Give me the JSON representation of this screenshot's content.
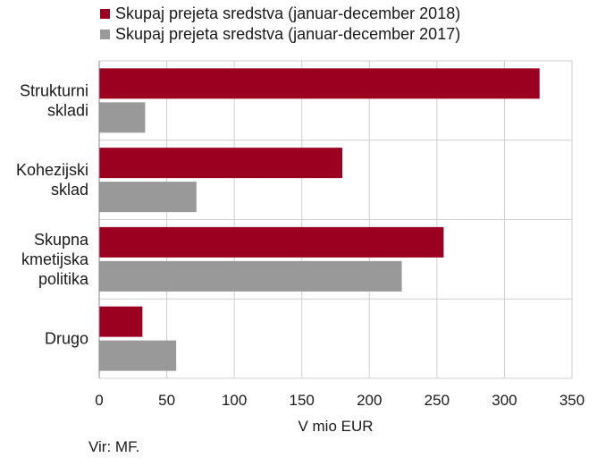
{
  "chart_data": {
    "type": "bar",
    "orientation": "horizontal",
    "categories": [
      [
        "Strukturni",
        "skladi"
      ],
      [
        "Kohezijski",
        "sklad"
      ],
      [
        "Skupna",
        "kmetijska",
        "politika"
      ],
      [
        "Drugo"
      ]
    ],
    "series": [
      {
        "name": "Skupaj prejeta sredstva (januar-december 2018)",
        "color": "#9b0020",
        "values": [
          326,
          180,
          255,
          32
        ]
      },
      {
        "name": "Skupaj prejeta sredstva (januar-december 2017)",
        "color": "#999999",
        "values": [
          34,
          72,
          224,
          57
        ]
      }
    ],
    "xlim": [
      0,
      350
    ],
    "xticks": [
      0,
      50,
      100,
      150,
      200,
      250,
      300,
      350
    ],
    "xlabel": "V mio EUR",
    "ylabel": "",
    "grid": true,
    "legend": "top"
  },
  "source": "Vir: MF."
}
